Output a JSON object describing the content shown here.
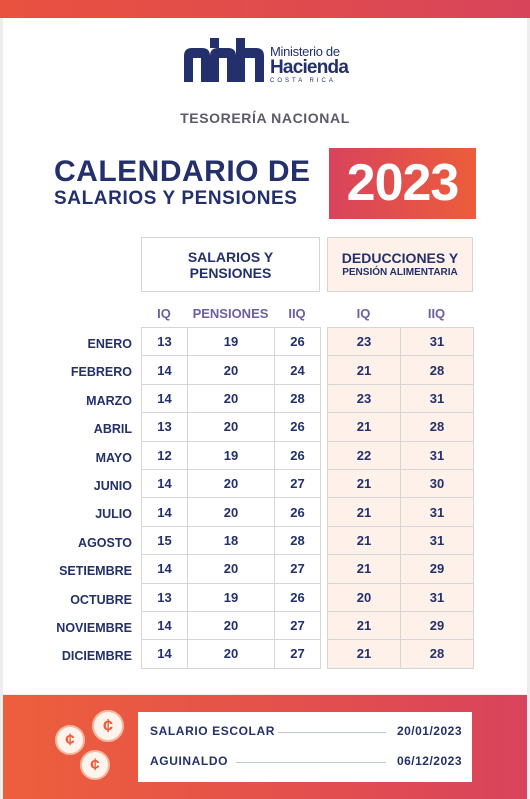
{
  "logo": {
    "line1": "Ministerio de",
    "line2": "Hacienda",
    "line3": "COSTA RICA"
  },
  "subtitle": "TESORERÍA NACIONAL",
  "title": {
    "line1": "CALENDARIO DE",
    "line2": "SALARIOS Y PENSIONES",
    "year": "2023"
  },
  "groups": {
    "salarios": {
      "line1": "SALARIOS Y",
      "line2": "PENSIONES"
    },
    "deducciones": {
      "line1": "DEDUCCIONES Y",
      "line2": "PENSIÓN ALIMENTARIA"
    }
  },
  "columns": {
    "sal_iq": "IQ",
    "pensiones": "PENSIONES",
    "sal_iiq": "IIQ",
    "ded_iq": "IQ",
    "ded_iiq": "IIQ"
  },
  "months": [
    "ENERO",
    "FEBRERO",
    "MARZO",
    "ABRIL",
    "MAYO",
    "JUNIO",
    "JULIO",
    "AGOSTO",
    "SETIEMBRE",
    "OCTUBRE",
    "NOVIEMBRE",
    "DICIEMBRE"
  ],
  "salarios": [
    [
      "13",
      "19",
      "26"
    ],
    [
      "14",
      "20",
      "24"
    ],
    [
      "14",
      "20",
      "28"
    ],
    [
      "13",
      "20",
      "26"
    ],
    [
      "12",
      "19",
      "26"
    ],
    [
      "14",
      "20",
      "27"
    ],
    [
      "14",
      "20",
      "26"
    ],
    [
      "15",
      "18",
      "28"
    ],
    [
      "14",
      "20",
      "27"
    ],
    [
      "13",
      "19",
      "26"
    ],
    [
      "14",
      "20",
      "27"
    ],
    [
      "14",
      "20",
      "27"
    ]
  ],
  "deducciones": [
    [
      "23",
      "31"
    ],
    [
      "21",
      "28"
    ],
    [
      "23",
      "31"
    ],
    [
      "21",
      "28"
    ],
    [
      "22",
      "31"
    ],
    [
      "21",
      "30"
    ],
    [
      "21",
      "31"
    ],
    [
      "21",
      "31"
    ],
    [
      "21",
      "29"
    ],
    [
      "20",
      "31"
    ],
    [
      "21",
      "29"
    ],
    [
      "21",
      "28"
    ]
  ],
  "footer": {
    "coin_symbol": "¢",
    "items": [
      {
        "label": "SALARIO ESCOLAR",
        "date": "20/01/2023"
      },
      {
        "label": "AGUINALDO",
        "date": "06/12/2023"
      }
    ]
  },
  "colors": {
    "navy": "#23306b",
    "accent": "#e9523f",
    "accent_pink": "#d9435c",
    "peach": "#fdf1ea"
  }
}
